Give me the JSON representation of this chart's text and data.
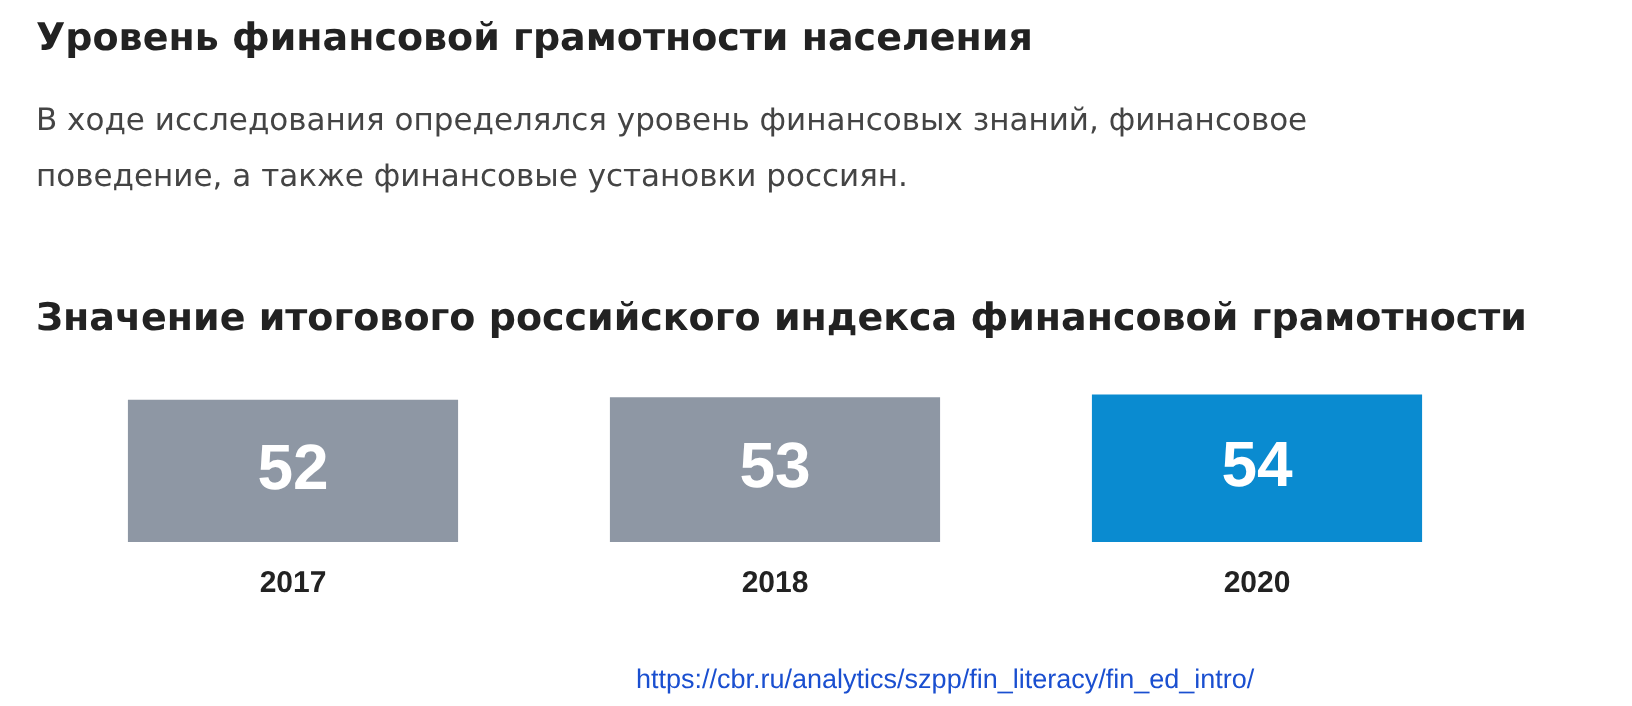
{
  "chart_data": {
    "type": "bar",
    "title": "Уровень финансовой грамотности населения",
    "subtitle": "В ходе исследования определялся уровень финансовых знаний, финансовое поведение, а также финансовые установки россиян.",
    "annotations": [
      "Значение итогового российского индекса финансовой грамотности",
      "https://cbr.ru/analytics/szpp/fin_literacy/fin_ed_intro/"
    ],
    "categories": [
      "2017",
      "2018",
      "2020"
    ],
    "values": [
      52,
      53,
      54
    ],
    "colors": [
      "#8e97a4",
      "#8e97a4",
      "#0a8bd0"
    ],
    "tick_labels": "x",
    "grid": false,
    "legend": false,
    "data_labels": true
  }
}
